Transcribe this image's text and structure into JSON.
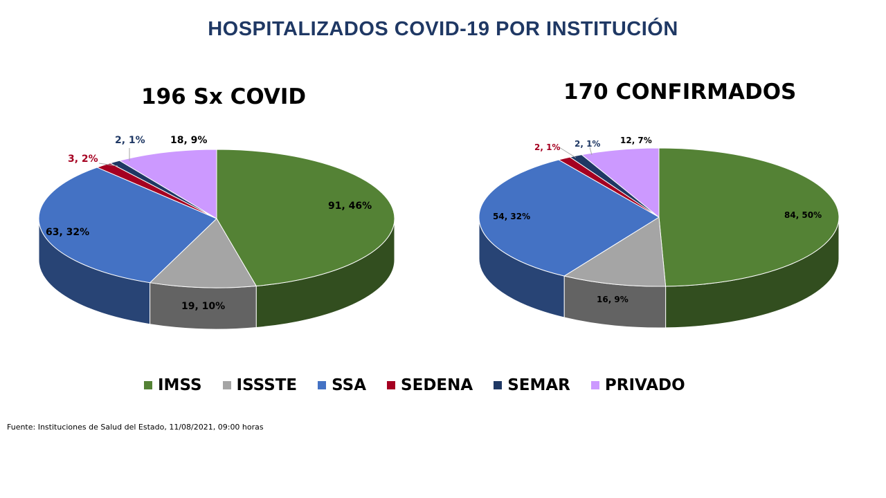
{
  "title": "HOSPITALIZADOS COVID-19 POR INSTITUCIÓN",
  "source": "Fuente: Instituciones de Salud del Estado, 11/08/2021, 09:00 horas",
  "legend": [
    {
      "name": "IMSS",
      "color": "#548235"
    },
    {
      "name": "ISSSTE",
      "color": "#a5a5a5"
    },
    {
      "name": "SSA",
      "color": "#4472c4"
    },
    {
      "name": "SEDENA",
      "color": "#a50021"
    },
    {
      "name": "SEMAR",
      "color": "#1f3864"
    },
    {
      "name": "PRIVADO",
      "color": "#cc99ff"
    }
  ],
  "chart_data": [
    {
      "type": "pie",
      "title": "196 Sx COVID",
      "categories": [
        "IMSS",
        "ISSSTE",
        "SSA",
        "SEDENA",
        "SEMAR",
        "PRIVADO"
      ],
      "values": [
        91,
        19,
        63,
        3,
        2,
        18
      ],
      "labels": [
        "91, 46%",
        "19, 10%",
        "63, 32%",
        "3, 2%",
        "2, 1%",
        "18, 9%"
      ]
    },
    {
      "type": "pie",
      "title": "170 CONFIRMADOS",
      "categories": [
        "IMSS",
        "ISSSTE",
        "SSA",
        "SEDENA",
        "SEMAR",
        "PRIVADO"
      ],
      "values": [
        84,
        16,
        54,
        2,
        2,
        12
      ],
      "labels": [
        "84, 50%",
        "16, 9%",
        "54, 32%",
        "2, 1%",
        "2, 1%",
        "12, 7%"
      ]
    }
  ]
}
